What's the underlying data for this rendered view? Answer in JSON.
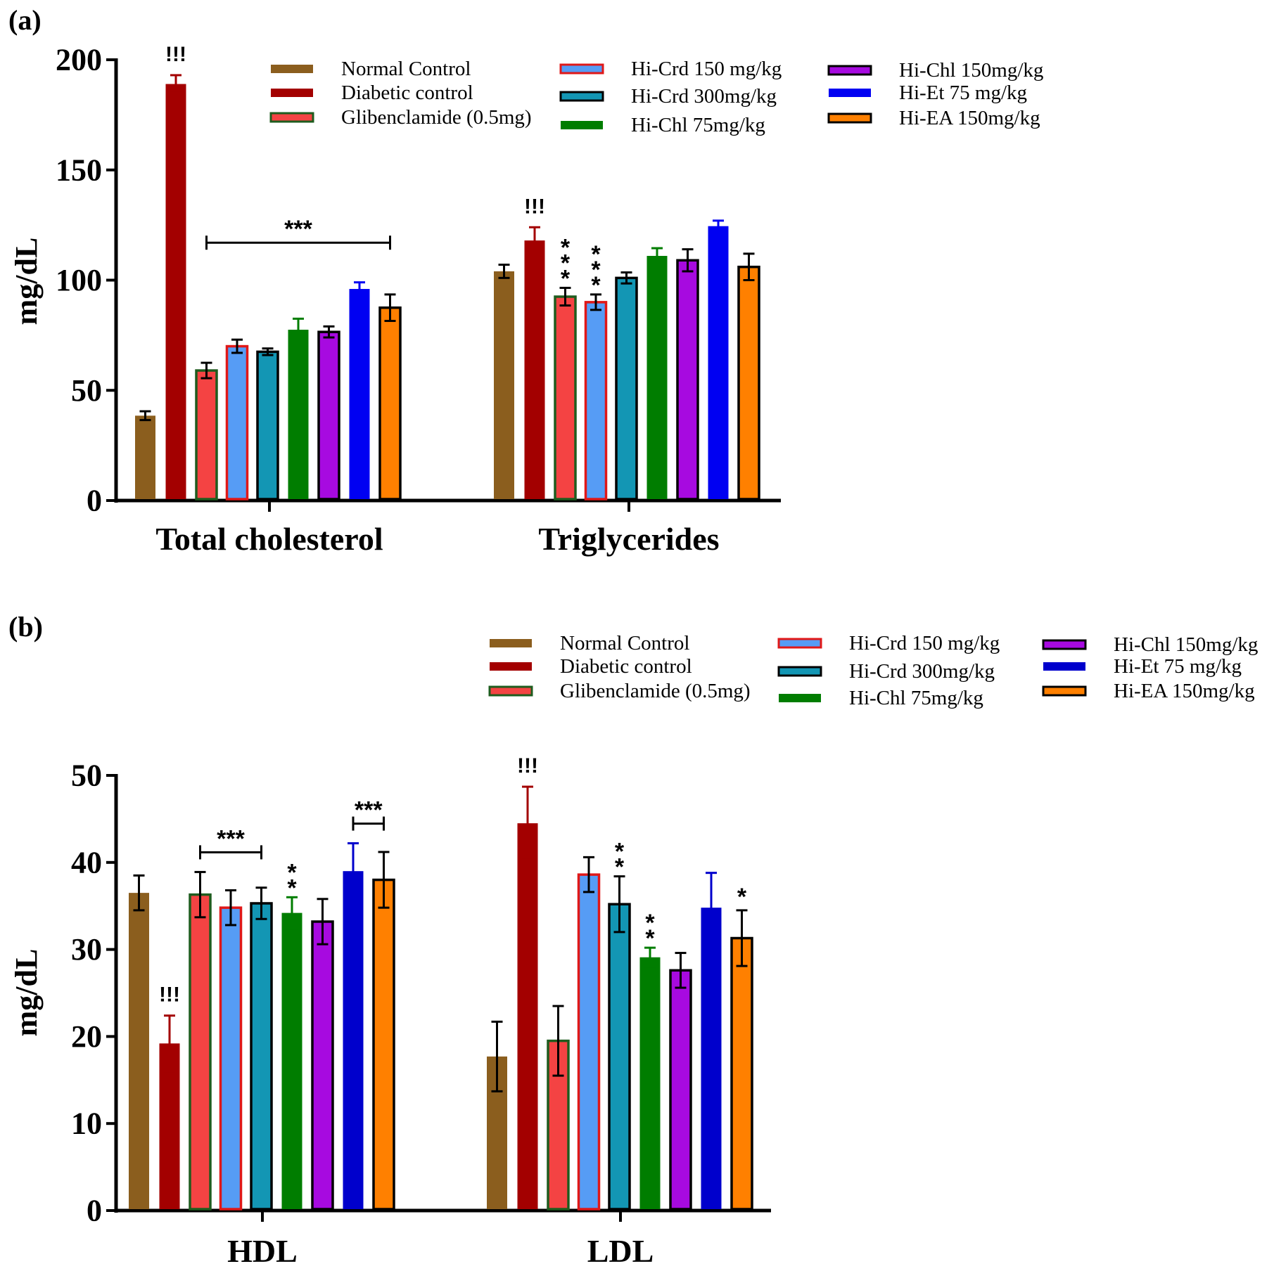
{
  "chart_data": [
    {
      "type": "bar",
      "panel_label": "(a)",
      "title": "",
      "xlabel": "",
      "ylabel": "mg/dL",
      "ylim": [
        0,
        200
      ],
      "yticks": [
        0,
        50,
        100,
        150,
        200
      ],
      "categories": [
        "Total cholesterol",
        "Triglycerides"
      ],
      "legend_position": "top-right",
      "series": [
        {
          "name": "Normal Control",
          "fill": "#8B5E1E",
          "stroke": "#8B5E1E",
          "values": [
            38.5,
            104
          ],
          "errors": [
            2,
            3
          ]
        },
        {
          "name": "Diabetic control",
          "fill": "#A30000",
          "stroke": "#A30000",
          "values": [
            189,
            118
          ],
          "errors": [
            4,
            6
          ]
        },
        {
          "name": "Glibenclamide (0.5mg)",
          "fill": "#F44343",
          "stroke": "#1E5C1E",
          "values": [
            59,
            92.5
          ],
          "errors": [
            3.5,
            4
          ]
        },
        {
          "name": "Hi-Crd 150 mg/kg",
          "fill": "#569CF5",
          "stroke": "#E01818",
          "values": [
            70,
            90
          ],
          "errors": [
            3,
            3.5
          ]
        },
        {
          "name": "Hi-Crd 300mg/kg",
          "fill": "#1396B4",
          "stroke": "#000000",
          "values": [
            67.5,
            101
          ],
          "errors": [
            1.5,
            2.5
          ]
        },
        {
          "name": "Hi-Chl 75mg/kg",
          "fill": "#007D00",
          "stroke": "#007D00",
          "values": [
            77.5,
            111
          ],
          "errors": [
            5,
            3.5
          ]
        },
        {
          "name": "Hi-Chl 150mg/kg",
          "fill": "#A70AE0",
          "stroke": "#000000",
          "values": [
            76.5,
            109
          ],
          "errors": [
            2.5,
            5
          ]
        },
        {
          "name": "Hi-Et 75 mg/kg",
          "fill": "#0000F2",
          "stroke": "#0000F2",
          "values": [
            96,
            124.5
          ],
          "errors": [
            3,
            2.5
          ]
        },
        {
          "name": "Hi-EA 150mg/kg",
          "fill": "#FF8000",
          "stroke": "#000000",
          "values": [
            87.5,
            106
          ],
          "errors": [
            6,
            6
          ]
        }
      ],
      "annotations": [
        {
          "text": "!!!",
          "category": 0,
          "series": 1
        },
        {
          "text": "***",
          "category": 0,
          "bracket_from_series": 2,
          "bracket_to_series": 8
        },
        {
          "text": "!!!",
          "category": 1,
          "series": 1
        },
        {
          "text": "***",
          "category": 1,
          "series": 2,
          "vertical": true
        },
        {
          "text": "***",
          "category": 1,
          "series": 3,
          "vertical": true
        }
      ]
    },
    {
      "type": "bar",
      "panel_label": "(b)",
      "title": "",
      "xlabel": "",
      "ylabel": "mg/dL",
      "ylim": [
        0,
        50
      ],
      "yticks": [
        0,
        10,
        20,
        30,
        40,
        50
      ],
      "categories": [
        "HDL",
        "LDL"
      ],
      "legend_position": "top-right",
      "series": [
        {
          "name": "Normal Control",
          "fill": "#8B5E1E",
          "stroke": "#8B5E1E",
          "values": [
            36.5,
            17.7
          ],
          "errors": [
            2,
            4
          ]
        },
        {
          "name": "Diabetic control",
          "fill": "#A30000",
          "stroke": "#A30000",
          "values": [
            19.2,
            44.5
          ],
          "errors": [
            3.2,
            4.2
          ]
        },
        {
          "name": "Glibenclamide (0.5mg)",
          "fill": "#F44343",
          "stroke": "#1E5C1E",
          "values": [
            36.3,
            19.5
          ],
          "errors": [
            2.6,
            4
          ]
        },
        {
          "name": "Hi-Crd 150 mg/kg",
          "fill": "#569CF5",
          "stroke": "#E01818",
          "values": [
            34.8,
            38.6
          ],
          "errors": [
            2,
            2
          ]
        },
        {
          "name": "Hi-Crd 300mg/kg",
          "fill": "#1396B4",
          "stroke": "#000000",
          "values": [
            35.3,
            35.2
          ],
          "errors": [
            1.8,
            3.2
          ]
        },
        {
          "name": "Hi-Chl 75mg/kg",
          "fill": "#007D00",
          "stroke": "#007D00",
          "values": [
            34.2,
            29.1
          ],
          "errors": [
            1.8,
            1.1
          ]
        },
        {
          "name": "Hi-Chl 150mg/kg",
          "fill": "#A70AE0",
          "stroke": "#000000",
          "values": [
            33.2,
            27.6
          ],
          "errors": [
            2.6,
            2
          ]
        },
        {
          "name": "Hi-Et 75 mg/kg",
          "fill": "#0000CC",
          "stroke": "#0000CC",
          "values": [
            39,
            34.8
          ],
          "errors": [
            3.2,
            4
          ]
        },
        {
          "name": "Hi-EA 150mg/kg",
          "fill": "#FF8000",
          "stroke": "#000000",
          "values": [
            38,
            31.3
          ],
          "errors": [
            3.2,
            3.2
          ]
        }
      ],
      "annotations": [
        {
          "text": "!!!",
          "category": 0,
          "series": 1
        },
        {
          "text": "***",
          "category": 0,
          "bracket_from_series": 2,
          "bracket_to_series": 4
        },
        {
          "text": "**",
          "category": 0,
          "series": 5,
          "vertical": true
        },
        {
          "text": "***",
          "category": 0,
          "bracket_from_series": 7,
          "bracket_to_series": 8
        },
        {
          "text": "!!!",
          "category": 1,
          "series": 1
        },
        {
          "text": "**",
          "category": 1,
          "series": 4,
          "vertical": true
        },
        {
          "text": "**",
          "category": 1,
          "series": 5,
          "vertical": true
        },
        {
          "text": "*",
          "category": 1,
          "series": 8
        }
      ]
    }
  ]
}
